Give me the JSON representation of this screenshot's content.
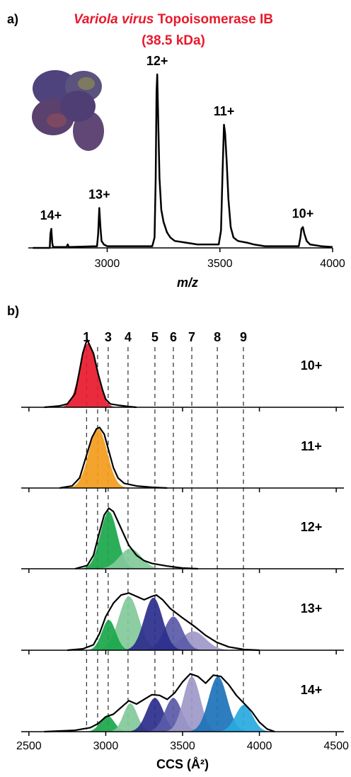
{
  "chart_data": [
    {
      "type": "line",
      "panel_label": "a)",
      "title_italic": "Variola virus",
      "title": "Topoisomerase IB",
      "subtitle": "(38.5 kDa)",
      "xlabel": "m/z",
      "xlim": [
        2650,
        4000
      ],
      "xticks": [
        3000,
        3500,
        4000
      ],
      "ylim": [
        0,
        100
      ],
      "color": "#000000",
      "x": [
        2670,
        2745,
        2748,
        2752,
        2756,
        2760,
        2820,
        2825,
        2830,
        2955,
        2960,
        2965,
        2970,
        2975,
        2985,
        3000,
        3200,
        3210,
        3215,
        3219,
        3222,
        3226,
        3232,
        3240,
        3250,
        3265,
        3280,
        3300,
        3350,
        3400,
        3495,
        3505,
        3512,
        3518,
        3523,
        3530,
        3538,
        3548,
        3560,
        3580,
        3620,
        3650,
        3700,
        3850,
        3857,
        3862,
        3868,
        3875,
        3885,
        3900,
        3950,
        4000
      ],
      "values": [
        0,
        0,
        8,
        11,
        3,
        0.5,
        0.5,
        2,
        0.5,
        1,
        8,
        23,
        12,
        4,
        2,
        1,
        1,
        6,
        40,
        90,
        100,
        75,
        40,
        22,
        15,
        9,
        6,
        4,
        3,
        2,
        2,
        10,
        45,
        71,
        66,
        50,
        28,
        12,
        6,
        4,
        3,
        2,
        1,
        1,
        6,
        11,
        12,
        8,
        4,
        2,
        1,
        0.5
      ],
      "annotations": [
        {
          "text": "14+",
          "x": 2750,
          "y": 11
        },
        {
          "text": "13+",
          "x": 2965,
          "y": 23
        },
        {
          "text": "12+",
          "x": 3222,
          "y": 100
        },
        {
          "text": "11+",
          "x": 3518,
          "y": 71
        },
        {
          "text": "10+",
          "x": 3868,
          "y": 12
        }
      ]
    },
    {
      "type": "density_stack",
      "panel_label": "b)",
      "xlabel": "CCS (Å²)",
      "xlim": [
        2450,
        4550
      ],
      "xticks": [
        2500,
        3000,
        3500,
        4000,
        4500
      ],
      "ylim": [
        0,
        100
      ],
      "color": "#000000",
      "conformers": {
        "x": [
          2875,
          2947,
          3016,
          3145,
          3320,
          3440,
          3560,
          3726,
          3896
        ],
        "labels": [
          "1",
          null,
          "3",
          "4",
          "5",
          "6",
          "7",
          "8",
          "9"
        ]
      },
      "panels": [
        {
          "name": "10+",
          "x": [
            2600,
            2700,
            2750,
            2800,
            2830,
            2850,
            2870,
            2880,
            2900,
            2920,
            2950,
            2980,
            3000,
            3030,
            3080,
            3150,
            3200
          ],
          "values": [
            0,
            2,
            5,
            20,
            55,
            80,
            95,
            100,
            90,
            80,
            50,
            25,
            12,
            5,
            3,
            1,
            0
          ],
          "components": [
            {
              "color": "#e8192c",
              "center": 2885,
              "height": 95,
              "width": 55
            }
          ]
        },
        {
          "name": "11+",
          "x": [
            2700,
            2780,
            2830,
            2870,
            2910,
            2940,
            2960,
            2990,
            3020,
            3050,
            3080,
            3120,
            3200,
            3300,
            3400
          ],
          "values": [
            0,
            3,
            15,
            45,
            75,
            88,
            90,
            80,
            55,
            30,
            15,
            7,
            3,
            1,
            0
          ],
          "components": [
            {
              "color": "#f39c1a",
              "center": 2950,
              "height": 88,
              "width": 60
            }
          ]
        },
        {
          "name": "12+",
          "x": [
            2800,
            2880,
            2920,
            2960,
            2990,
            3020,
            3050,
            3080,
            3110,
            3150,
            3200,
            3250,
            3300,
            3400,
            3500,
            3600
          ],
          "values": [
            0,
            5,
            20,
            55,
            80,
            90,
            85,
            70,
            55,
            35,
            20,
            12,
            8,
            4,
            1,
            0
          ],
          "components": [
            {
              "color": "#1aa64a",
              "center": 3020,
              "height": 85,
              "width": 55
            },
            {
              "color": "#82c99a",
              "center": 3160,
              "height": 30,
              "width": 70
            }
          ]
        },
        {
          "name": "13+",
          "x": [
            2750,
            2850,
            2920,
            2960,
            3000,
            3050,
            3100,
            3150,
            3200,
            3250,
            3300,
            3330,
            3370,
            3420,
            3500,
            3580,
            3650,
            3720,
            3800,
            3900,
            4000
          ],
          "values": [
            0,
            2,
            8,
            25,
            50,
            70,
            82,
            85,
            80,
            75,
            80,
            82,
            75,
            62,
            48,
            35,
            22,
            12,
            5,
            1,
            0
          ],
          "components": [
            {
              "color": "#82c99a",
              "center": 3150,
              "height": 80,
              "width": 65
            },
            {
              "color": "#1aa64a",
              "center": 3020,
              "height": 45,
              "width": 45
            },
            {
              "color": "#9d98c8",
              "center": 3570,
              "height": 28,
              "width": 80
            },
            {
              "color": "#5a5aa8",
              "center": 3440,
              "height": 50,
              "width": 60
            },
            {
              "color": "#2b2e8c",
              "center": 3310,
              "height": 78,
              "width": 60
            }
          ]
        },
        {
          "name": "14+",
          "x": [
            2600,
            2800,
            2900,
            2950,
            3000,
            3050,
            3100,
            3150,
            3200,
            3250,
            3300,
            3350,
            3400,
            3450,
            3500,
            3550,
            3600,
            3650,
            3700,
            3750,
            3800,
            3850,
            3900,
            3950,
            4000,
            4050,
            4100
          ],
          "values": [
            0,
            2,
            6,
            12,
            22,
            26,
            36,
            46,
            41,
            48,
            55,
            54,
            48,
            58,
            74,
            86,
            82,
            72,
            84,
            82,
            70,
            54,
            42,
            30,
            14,
            4,
            0
          ],
          "components": [
            {
              "color": "#1aa64a",
              "center": 3010,
              "height": 24,
              "width": 45
            },
            {
              "color": "#82c99a",
              "center": 3160,
              "height": 42,
              "width": 45
            },
            {
              "color": "#2b2e8c",
              "center": 3320,
              "height": 50,
              "width": 55
            },
            {
              "color": "#5a5aa8",
              "center": 3440,
              "height": 50,
              "width": 55
            },
            {
              "color": "#9d98c8",
              "center": 3560,
              "height": 82,
              "width": 55
            },
            {
              "color": "#1c72b8",
              "center": 3730,
              "height": 82,
              "width": 60
            },
            {
              "color": "#28a9e0",
              "center": 3900,
              "height": 40,
              "width": 55
            }
          ]
        }
      ]
    }
  ]
}
